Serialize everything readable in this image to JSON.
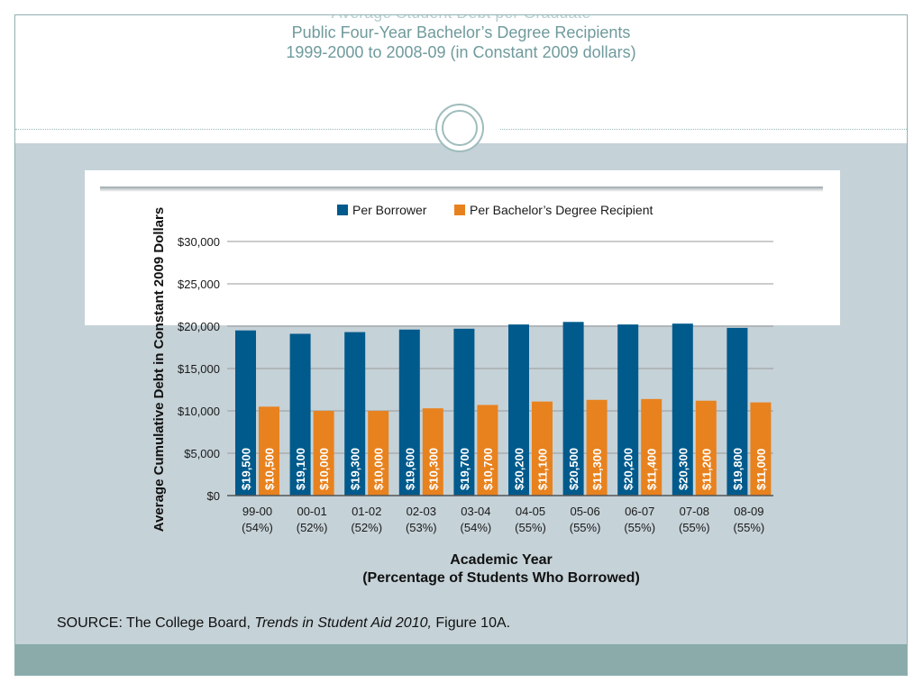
{
  "slide": {
    "title_lines": [
      "Average Student Debt per Graduate",
      "Public Four-Year Bachelor’s Degree Recipients",
      "1999-2000 to 2008-09 (in Constant 2009 dollars)"
    ],
    "source_prefix": "SOURCE: The College Board, ",
    "source_italic": "Trends in Student Aid 2010,",
    "source_suffix": " Figure 10A."
  },
  "chart_data": {
    "type": "bar",
    "categories": [
      "99-00",
      "00-01",
      "01-02",
      "02-03",
      "03-04",
      "04-05",
      "05-06",
      "06-07",
      "07-08",
      "08-09"
    ],
    "category_sublabels": [
      "(54%)",
      "(52%)",
      "(52%)",
      "(53%)",
      "(54%)",
      "(55%)",
      "(55%)",
      "(55%)",
      "(55%)",
      "(55%)"
    ],
    "series": [
      {
        "name": "Per Borrower",
        "color": "#005a8c",
        "values": [
          19500,
          19100,
          19300,
          19600,
          19700,
          20200,
          20500,
          20200,
          20300,
          19800
        ],
        "labels": [
          "$19,500",
          "$19,100",
          "$19,300",
          "$19,600",
          "$19,700",
          "$20,200",
          "$20,500",
          "$20,200",
          "$20,300",
          "$19,800"
        ]
      },
      {
        "name": "Per Bachelor’s Degree Recipient",
        "color": "#e8821e",
        "values": [
          10500,
          10000,
          10000,
          10300,
          10700,
          11100,
          11300,
          11400,
          11200,
          11000
        ],
        "labels": [
          "$10,500",
          "$10,000",
          "$10,000",
          "$10,300",
          "$10,700",
          "$11,100",
          "$11,300",
          "$11,400",
          "$11,200",
          "$11,000"
        ]
      }
    ],
    "ylim": [
      0,
      30000
    ],
    "yticks": [
      0,
      5000,
      10000,
      15000,
      20000,
      25000,
      30000
    ],
    "ytick_labels": [
      "$0",
      "$5,000",
      "$10,000",
      "$15,000",
      "$20,000",
      "$25,000",
      "$30,000"
    ],
    "ylabel": "Average Cumulative Debt in Constant 2009 Dollars",
    "xlabel_lines": [
      "Academic Year",
      "(Percentage of Students Who Borrowed)"
    ],
    "grid": true,
    "legend_position": "top-right"
  }
}
